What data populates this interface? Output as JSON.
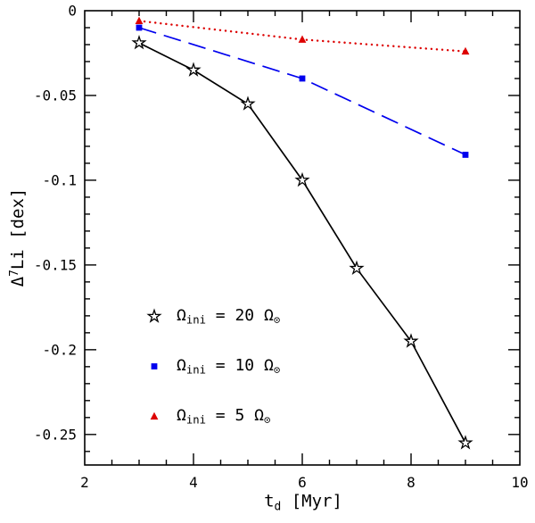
{
  "chart_data": {
    "type": "line",
    "title": "",
    "xlabel": "t_d [Myr]",
    "ylabel": "Δ⁷Li [dex]",
    "xlabel_parts": [
      {
        "t": "t"
      },
      {
        "t": "d",
        "style": "sub"
      },
      {
        "t": " [Myr]"
      }
    ],
    "ylabel_parts": [
      {
        "t": "Δ"
      },
      {
        "t": "7",
        "style": "sup"
      },
      {
        "t": "Li [dex]"
      }
    ],
    "xlim": [
      2,
      10
    ],
    "ylim": [
      -0.268,
      0
    ],
    "grid": false,
    "legend_position": "inside-lower-left",
    "x_major_ticks": [
      2,
      4,
      6,
      8,
      10
    ],
    "x_tick_labels": [
      "2",
      "4",
      "6",
      "8",
      "10"
    ],
    "x_minor_tick_step": 0.5,
    "y_major_tick_step": 0.05,
    "y_minor_tick_step": 0.01,
    "y_tick_labels": [
      {
        "v": 0,
        "label": "0"
      },
      {
        "v": -0.05,
        "label": "-0.05"
      },
      {
        "v": -0.1,
        "label": "-0.1"
      },
      {
        "v": -0.15,
        "label": "-0.15"
      },
      {
        "v": -0.2,
        "label": "-0.2"
      },
      {
        "v": -0.25,
        "label": "-0.25"
      }
    ],
    "series": [
      {
        "name": "Ω_ini = 20 Ω_⊙",
        "label_parts": [
          {
            "t": "Ω"
          },
          {
            "t": "ini",
            "style": "sub"
          },
          {
            "t": " = 20 Ω"
          },
          {
            "t": "⊙",
            "style": "sub"
          }
        ],
        "color": "#000000",
        "line_style": "solid",
        "marker": "open-star",
        "x": [
          3,
          4,
          5,
          6,
          7,
          8,
          9
        ],
        "y": [
          -0.019,
          -0.035,
          -0.055,
          -0.1,
          -0.152,
          -0.195,
          -0.255
        ]
      },
      {
        "name": "Ω_ini = 10 Ω_⊙",
        "label_parts": [
          {
            "t": "Ω"
          },
          {
            "t": "ini",
            "style": "sub"
          },
          {
            "t": " = 10 Ω"
          },
          {
            "t": "⊙",
            "style": "sub"
          }
        ],
        "color": "#0000ee",
        "line_style": "long-dash",
        "marker": "filled-square",
        "x": [
          3,
          6,
          9
        ],
        "y": [
          -0.01,
          -0.04,
          -0.085
        ]
      },
      {
        "name": "Ω_ini = 5 Ω_⊙",
        "label_parts": [
          {
            "t": "Ω"
          },
          {
            "t": "ini",
            "style": "sub"
          },
          {
            "t": " = 5 Ω"
          },
          {
            "t": "⊙",
            "style": "sub"
          }
        ],
        "color": "#dd0000",
        "line_style": "dotted",
        "marker": "filled-triangle",
        "x": [
          3,
          6,
          9
        ],
        "y": [
          -0.006,
          -0.017,
          -0.024
        ]
      }
    ]
  },
  "colors": {
    "background": "#ffffff",
    "axis": "#000000"
  }
}
